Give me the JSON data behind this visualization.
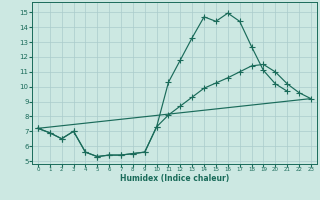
{
  "background_color": "#cce8e2",
  "grid_color": "#aacccc",
  "line_color": "#1a6b5a",
  "xlabel": "Humidex (Indice chaleur)",
  "xlim": [
    -0.5,
    23.5
  ],
  "ylim": [
    4.8,
    15.7
  ],
  "yticks": [
    5,
    6,
    7,
    8,
    9,
    10,
    11,
    12,
    13,
    14,
    15
  ],
  "xticks": [
    0,
    1,
    2,
    3,
    4,
    5,
    6,
    7,
    8,
    9,
    10,
    11,
    12,
    13,
    14,
    15,
    16,
    17,
    18,
    19,
    20,
    21,
    22,
    23
  ],
  "curve1_x": [
    0,
    1,
    2,
    3,
    4,
    5,
    6,
    7,
    8,
    9,
    10,
    11,
    12,
    13,
    14,
    15,
    16,
    17,
    18,
    19,
    20,
    21
  ],
  "curve1_y": [
    7.2,
    6.9,
    6.5,
    7.0,
    5.6,
    5.3,
    5.4,
    5.4,
    5.5,
    5.6,
    7.3,
    10.3,
    11.8,
    13.3,
    14.7,
    14.4,
    14.95,
    14.4,
    12.7,
    11.1,
    10.2,
    9.7
  ],
  "curve2_x": [
    0,
    1,
    2,
    3,
    4,
    5,
    6,
    7,
    8,
    9,
    10,
    11,
    12,
    13,
    14,
    15,
    16,
    17,
    18,
    19,
    20,
    21,
    22,
    23
  ],
  "curve2_y": [
    7.2,
    6.9,
    6.5,
    7.0,
    5.6,
    5.3,
    5.4,
    5.4,
    5.5,
    5.6,
    7.3,
    8.1,
    8.7,
    9.3,
    9.9,
    10.25,
    10.6,
    11.0,
    11.4,
    11.5,
    11.0,
    10.2,
    9.6,
    9.2
  ],
  "line3_x": [
    0,
    23
  ],
  "line3_y": [
    7.2,
    9.2
  ],
  "marker_size": 2.5,
  "linewidth": 0.85
}
